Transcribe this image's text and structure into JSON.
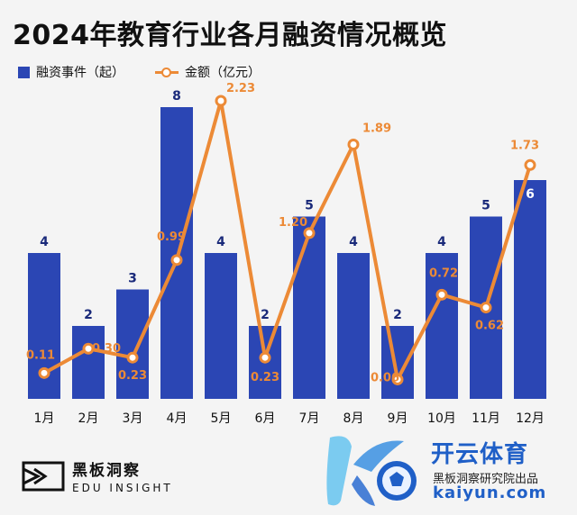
{
  "title": "2024年教育行业各月融资情况概览",
  "legend": {
    "bars_label": "融资事件（起）",
    "line_label": "金额（亿元）"
  },
  "colors": {
    "bar": "#2b46b4",
    "line": "#ec8a36",
    "background": "#f4f4f4"
  },
  "chart_data": {
    "type": "bar",
    "categories": [
      "1月",
      "2月",
      "3月",
      "4月",
      "5月",
      "6月",
      "7月",
      "8月",
      "9月",
      "10月",
      "11月",
      "12月"
    ],
    "series": [
      {
        "name": "融资事件（起）",
        "type": "bar",
        "values": [
          4,
          2,
          3,
          8,
          4,
          2,
          5,
          4,
          2,
          4,
          5,
          6
        ]
      },
      {
        "name": "金额（亿元）",
        "type": "line",
        "values": [
          0.11,
          0.3,
          0.23,
          0.99,
          2.23,
          0.23,
          1.2,
          1.89,
          0.06,
          0.72,
          0.62,
          1.73
        ]
      }
    ],
    "bar_labels": [
      "4",
      "2",
      "3",
      "8",
      "4",
      "2",
      "5",
      "4",
      "2",
      "4",
      "5",
      "6"
    ],
    "line_labels": [
      "0.11",
      "0.30",
      "0.23",
      "0.99",
      "2.23",
      "0.23",
      "1.20",
      "1.89",
      "0.06",
      "0.72",
      "0.62",
      "1.73"
    ],
    "legend_position": "top-left",
    "grid": false
  },
  "footer": {
    "logo_cn": "黑板洞察",
    "logo_en": "EDU INSIGHT",
    "watermark_brand": "开云体育",
    "watermark_sub": "黑板洞察研究院出品",
    "watermark_url": "kaiyun.com"
  }
}
